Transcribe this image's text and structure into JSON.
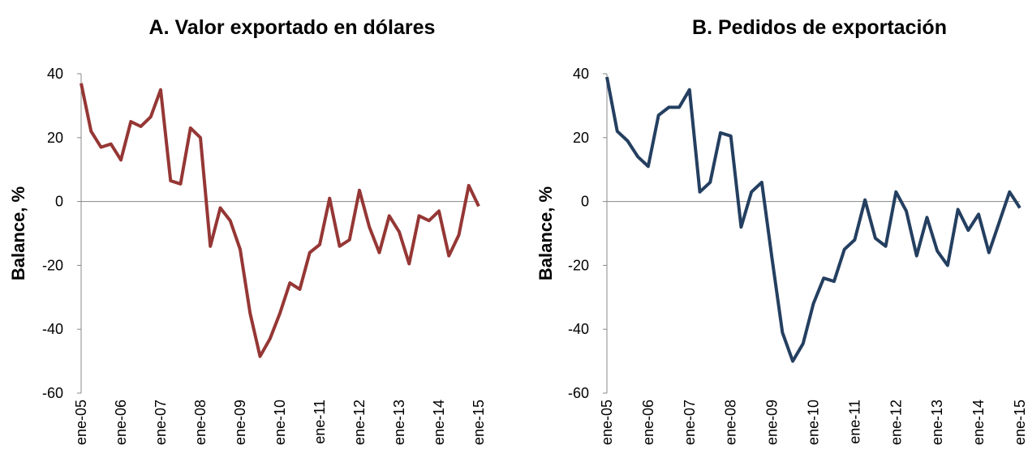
{
  "chart_data": [
    {
      "type": "line",
      "title": "A.   Valor exportado en dólares",
      "y_label": "Balance, %",
      "categories": [
        "ene-05",
        null,
        null,
        null,
        "ene-06",
        null,
        null,
        null,
        "ene-07",
        null,
        null,
        null,
        "ene-08",
        null,
        null,
        null,
        "ene-09",
        null,
        null,
        null,
        "ene-10",
        null,
        null,
        null,
        "ene-11",
        null,
        null,
        null,
        "ene-12",
        null,
        null,
        null,
        "ene-13",
        null,
        null,
        null,
        "ene-14",
        null,
        null,
        null,
        "ene-15"
      ],
      "series": [
        {
          "color": "#953735",
          "values": [
            37,
            22,
            17,
            18,
            13,
            25,
            23.5,
            26.5,
            35,
            6.5,
            5.5,
            23,
            20,
            -14,
            -2,
            -6,
            -15,
            -35,
            -48.5,
            -43,
            -35,
            -25.5,
            -27.5,
            -16,
            -13.5,
            1,
            -14,
            -12,
            3.5,
            -8,
            -16,
            -4.5,
            -9.5,
            -19.5,
            -4.5,
            -6,
            -3,
            -17,
            -10.5,
            5,
            -1.5
          ]
        }
      ],
      "ylim": [
        -60,
        40
      ],
      "yticks": [
        -60,
        -40,
        -20,
        0,
        20,
        40
      ]
    },
    {
      "type": "line",
      "title": "B.   Pedidos de exportación",
      "y_label": "Balance, %",
      "categories": [
        "ene-05",
        null,
        null,
        null,
        "ene-06",
        null,
        null,
        null,
        "ene-07",
        null,
        null,
        null,
        "ene-08",
        null,
        null,
        null,
        "ene-09",
        null,
        null,
        null,
        "ene-10",
        null,
        null,
        null,
        "ene-11",
        null,
        null,
        null,
        "ene-12",
        null,
        null,
        null,
        "ene-13",
        null,
        null,
        null,
        "ene-14",
        null,
        null,
        null,
        "ene-15"
      ],
      "series": [
        {
          "color": "#243f60",
          "values": [
            39,
            22,
            19,
            14,
            11,
            27,
            29.5,
            29.5,
            35,
            3,
            6,
            21.5,
            20.5,
            -8,
            3,
            6,
            -18,
            -41,
            -50,
            -44.5,
            -32,
            -24,
            -25,
            -15,
            -12,
            0.5,
            -11.5,
            -14,
            3,
            -3,
            -17,
            -5,
            -15.5,
            -20,
            -2.5,
            -9,
            -4,
            -16,
            -6.5,
            3,
            -2
          ]
        }
      ],
      "ylim": [
        -60,
        40
      ],
      "yticks": [
        -60,
        -40,
        -20,
        0,
        20,
        40
      ]
    }
  ]
}
